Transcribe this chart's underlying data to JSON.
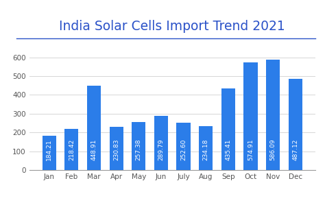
{
  "title": "India Solar Cells Import Trend 2021",
  "months": [
    "Jan",
    "Feb",
    "Mar",
    "Apr",
    "May",
    "Jun",
    "July",
    "Aug",
    "Sep",
    "Oct",
    "Nov",
    "Dec"
  ],
  "values": [
    184.21,
    218.42,
    448.91,
    230.83,
    257.38,
    289.79,
    252.6,
    234.18,
    435.41,
    574.91,
    586.09,
    487.12
  ],
  "bar_color": "#2b7de9",
  "background_color": "#ffffff",
  "title_color": "#2b52c8",
  "label_color": "#ffffff",
  "yticks": [
    0,
    100,
    200,
    300,
    400,
    500,
    600
  ],
  "ylim": [
    0,
    650
  ],
  "title_fontsize": 13.5,
  "tick_fontsize": 7.5,
  "value_fontsize": 6.5,
  "grid_color": "#d0d0d0",
  "underline_color": "#2b52c8",
  "axis_bottom_color": "#999999"
}
